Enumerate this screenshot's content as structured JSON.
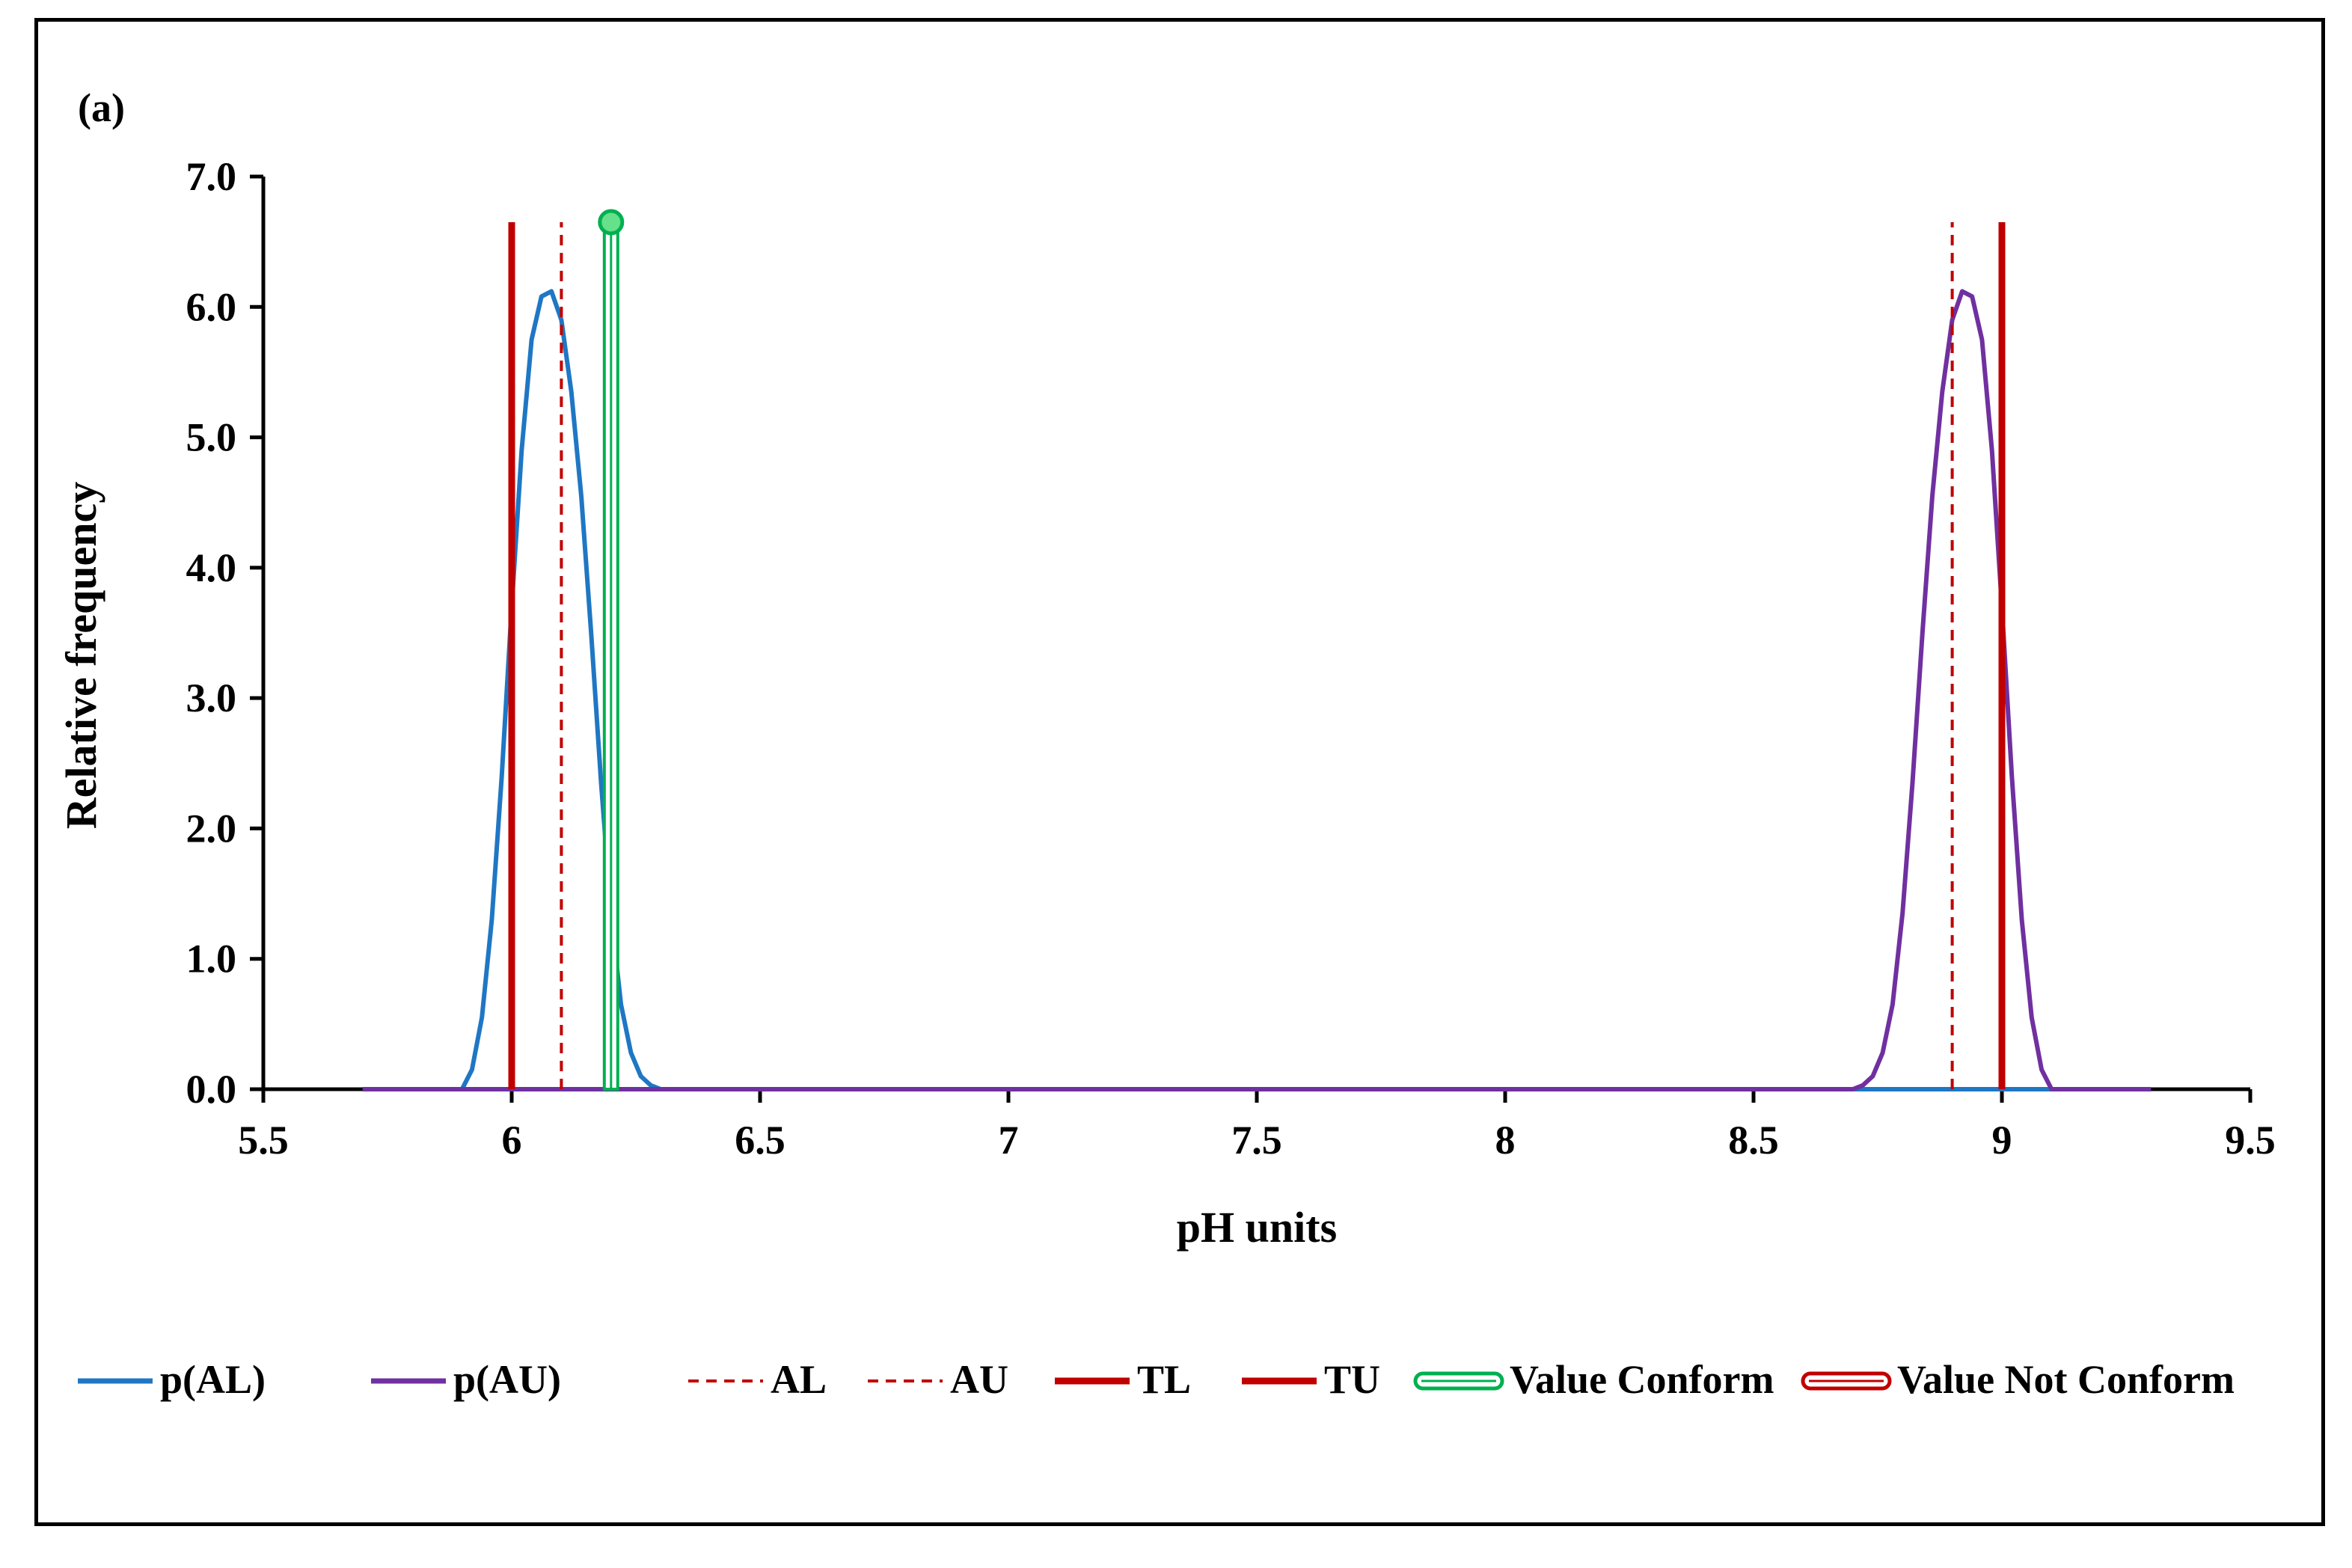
{
  "chart_data": {
    "type": "line",
    "panel_label": "(a)",
    "xlabel": "pH units",
    "ylabel": "Relative frequency",
    "xlim": [
      5.5,
      9.5
    ],
    "ylim": [
      0,
      7
    ],
    "x_ticks": [
      "5.5",
      "6",
      "6.5",
      "7",
      "7.5",
      "8",
      "8.5",
      "9",
      "9.5"
    ],
    "x_tick_values": [
      5.5,
      6,
      6.5,
      7,
      7.5,
      8,
      8.5,
      9,
      9.5
    ],
    "y_ticks": [
      "0.0",
      "1.0",
      "2.0",
      "3.0",
      "4.0",
      "5.0",
      "6.0",
      "7.0"
    ],
    "y_tick_values": [
      0,
      1,
      2,
      3,
      4,
      5,
      6,
      7
    ],
    "grid": false,
    "legend_position": "bottom",
    "series": [
      {
        "name": "p(AL)",
        "kind": "curve",
        "color": "#1F77C4",
        "dash": "solid",
        "x": [
          5.7,
          5.9,
          5.92,
          5.94,
          5.96,
          5.98,
          6.0,
          6.02,
          6.04,
          6.06,
          6.08,
          6.1,
          6.12,
          6.14,
          6.16,
          6.18,
          6.2,
          6.22,
          6.24,
          6.26,
          6.28,
          6.3,
          9.3
        ],
        "y": [
          0.0,
          0.0,
          0.15,
          0.55,
          1.3,
          2.4,
          3.7,
          4.9,
          5.75,
          6.08,
          6.12,
          5.9,
          5.35,
          4.55,
          3.5,
          2.35,
          1.35,
          0.65,
          0.28,
          0.1,
          0.03,
          0.0,
          0.0
        ]
      },
      {
        "name": "p(AU)",
        "kind": "curve",
        "color": "#7030A0",
        "dash": "solid",
        "x": [
          5.7,
          8.7,
          8.72,
          8.74,
          8.76,
          8.78,
          8.8,
          8.82,
          8.84,
          8.86,
          8.88,
          8.9,
          8.92,
          8.94,
          8.96,
          8.98,
          9.0,
          9.02,
          9.04,
          9.06,
          9.08,
          9.1,
          9.3
        ],
        "y": [
          0.0,
          0.0,
          0.03,
          0.1,
          0.28,
          0.65,
          1.35,
          2.35,
          3.5,
          4.55,
          5.35,
          5.9,
          6.12,
          6.08,
          5.75,
          4.9,
          3.7,
          2.4,
          1.3,
          0.55,
          0.15,
          0.0,
          0.0
        ]
      },
      {
        "name": "AL",
        "kind": "vline",
        "x": 6.1,
        "y_top": 6.65,
        "color": "#C00000",
        "dash": "dashed"
      },
      {
        "name": "AU",
        "kind": "vline",
        "x": 8.9,
        "y_top": 6.65,
        "color": "#C00000",
        "dash": "dashed"
      },
      {
        "name": "TL",
        "kind": "vline",
        "x": 6.0,
        "y_top": 6.65,
        "color": "#C00000",
        "dash": "solid-thick"
      },
      {
        "name": "TU",
        "kind": "vline",
        "x": 9.0,
        "y_top": 6.65,
        "color": "#C00000",
        "dash": "solid-thick"
      },
      {
        "name": "Value Conform",
        "kind": "marker-line",
        "x": 6.2,
        "y_top": 6.65,
        "color": "#00B050",
        "fill": "#66E08A"
      },
      {
        "name": "Value Not Conform",
        "kind": "marker-line",
        "x": null,
        "y_top": null,
        "color": "#C00000",
        "fill": "#FFFFFF"
      }
    ]
  }
}
